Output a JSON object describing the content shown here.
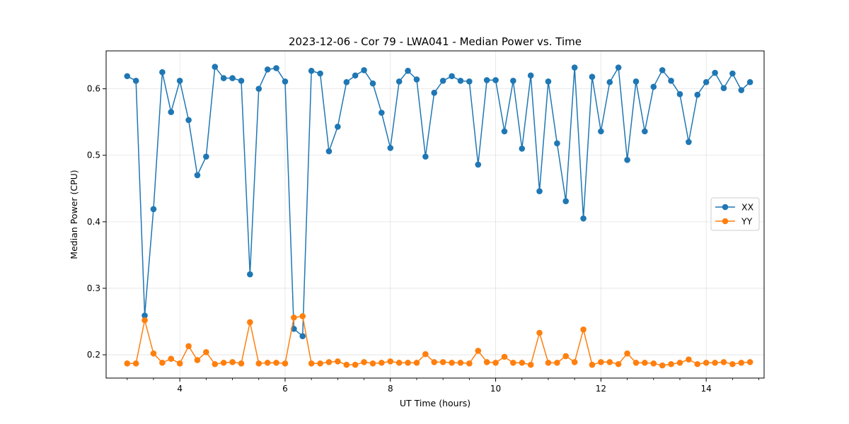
{
  "chart_data": {
    "type": "line",
    "title": "2023-12-06 - Cor 79 - LWA041 - Median Power vs. Time",
    "xlabel": "UT Time (hours)",
    "ylabel": "Median Power (CPU)",
    "xlim": [
      2.6,
      15.1
    ],
    "ylim": [
      0.165,
      0.657
    ],
    "xticks": [
      4,
      6,
      8,
      10,
      12,
      14
    ],
    "yticks": [
      0.2,
      0.3,
      0.4,
      0.5,
      0.6
    ],
    "xtick_labels": [
      "4",
      "6",
      "8",
      "10",
      "12",
      "14"
    ],
    "ytick_labels": [
      "0.2",
      "0.3",
      "0.4",
      "0.5",
      "0.6"
    ],
    "grid": true,
    "legend_position": "center-right",
    "x": [
      3.0,
      3.167,
      3.333,
      3.5,
      3.667,
      3.833,
      4.0,
      4.167,
      4.333,
      4.5,
      4.667,
      4.833,
      5.0,
      5.167,
      5.333,
      5.5,
      5.667,
      5.833,
      6.0,
      6.167,
      6.333,
      6.5,
      6.667,
      6.833,
      7.0,
      7.167,
      7.333,
      7.5,
      7.667,
      7.833,
      8.0,
      8.167,
      8.333,
      8.5,
      8.667,
      8.833,
      9.0,
      9.167,
      9.333,
      9.5,
      9.667,
      9.833,
      10.0,
      10.167,
      10.333,
      10.5,
      10.667,
      10.833,
      11.0,
      11.167,
      11.333,
      11.5,
      11.667,
      11.833,
      12.0,
      12.167,
      12.333,
      12.5,
      12.667,
      12.833,
      13.0,
      13.167,
      13.333,
      13.5,
      13.667,
      13.833,
      14.0,
      14.167,
      14.333,
      14.5,
      14.667,
      14.833
    ],
    "series": [
      {
        "name": "XX",
        "color": "#1f77b4",
        "values": [
          0.619,
          0.612,
          0.259,
          0.419,
          0.625,
          0.565,
          0.612,
          0.553,
          0.47,
          0.498,
          0.633,
          0.616,
          0.616,
          0.612,
          0.321,
          0.6,
          0.629,
          0.631,
          0.611,
          0.239,
          0.228,
          0.627,
          0.623,
          0.506,
          0.543,
          0.61,
          0.62,
          0.628,
          0.608,
          0.564,
          0.511,
          0.611,
          0.627,
          0.614,
          0.498,
          0.594,
          0.612,
          0.619,
          0.612,
          0.611,
          0.486,
          0.613,
          0.613,
          0.536,
          0.612,
          0.51,
          0.62,
          0.446,
          0.611,
          0.518,
          0.431,
          0.632,
          0.405,
          0.618,
          0.536,
          0.61,
          0.632,
          0.493,
          0.611,
          0.536,
          0.603,
          0.628,
          0.612,
          0.592,
          0.52,
          0.591,
          0.61,
          0.624,
          0.601,
          0.623,
          0.598,
          0.61
        ]
      },
      {
        "name": "YY",
        "color": "#ff7f0e",
        "values": [
          0.187,
          0.187,
          0.252,
          0.202,
          0.188,
          0.194,
          0.187,
          0.213,
          0.192,
          0.204,
          0.186,
          0.188,
          0.189,
          0.187,
          0.249,
          0.187,
          0.188,
          0.188,
          0.187,
          0.256,
          0.258,
          0.187,
          0.187,
          0.189,
          0.19,
          0.185,
          0.185,
          0.189,
          0.187,
          0.188,
          0.19,
          0.188,
          0.188,
          0.188,
          0.201,
          0.189,
          0.189,
          0.188,
          0.188,
          0.187,
          0.206,
          0.189,
          0.188,
          0.197,
          0.188,
          0.188,
          0.185,
          0.233,
          0.188,
          0.188,
          0.198,
          0.189,
          0.238,
          0.185,
          0.189,
          0.189,
          0.186,
          0.202,
          0.188,
          0.188,
          0.187,
          0.184,
          0.186,
          0.188,
          0.193,
          0.186,
          0.188,
          0.188,
          0.189,
          0.186,
          0.188,
          0.189
        ]
      }
    ]
  }
}
